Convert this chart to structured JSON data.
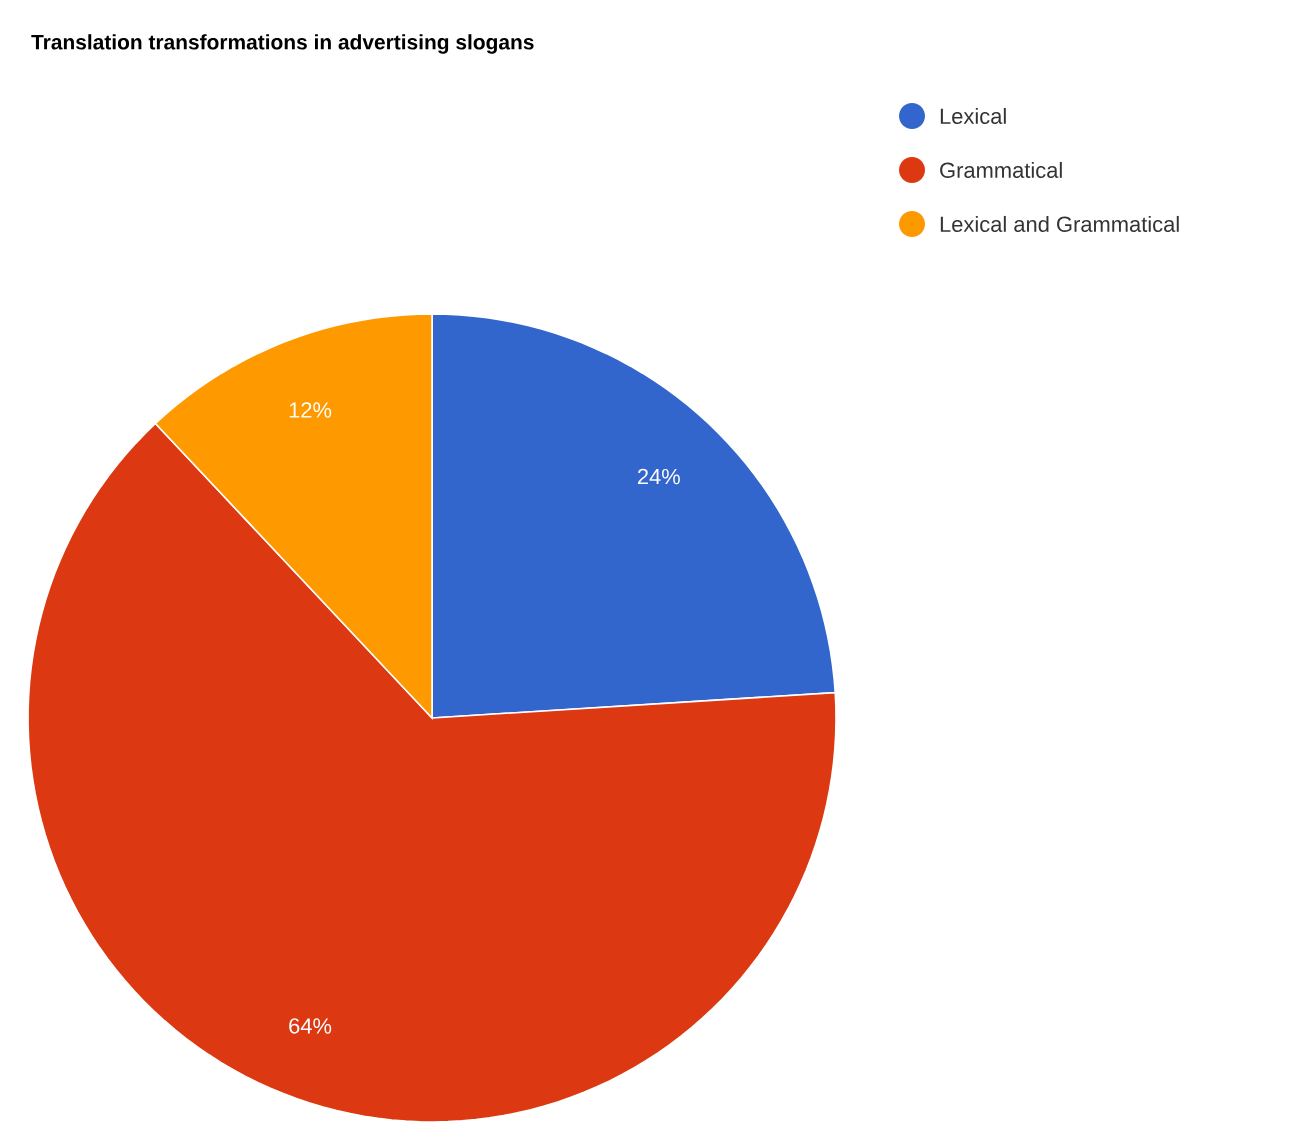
{
  "chart_data": {
    "type": "pie",
    "title": "Translation transformations in advertising slogans",
    "categories": [
      "Lexical",
      "Grammatical",
      "Lexical and Grammatical"
    ],
    "values": [
      24,
      64,
      12
    ],
    "value_labels": [
      "24%",
      "64%",
      "12%"
    ],
    "colors": [
      "#3366cc",
      "#dc3912",
      "#ff9900"
    ],
    "legend": "top right"
  }
}
